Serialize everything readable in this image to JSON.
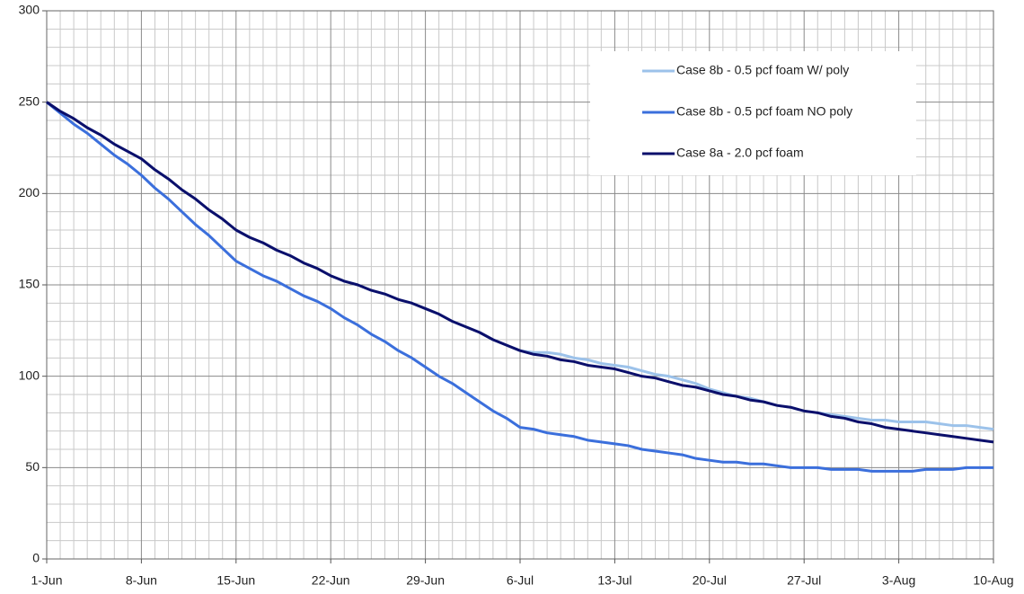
{
  "chart_data": {
    "type": "line",
    "categories": [
      "1-Jun",
      null,
      null,
      null,
      null,
      null,
      null,
      "8-Jun",
      null,
      null,
      null,
      null,
      null,
      null,
      "15-Jun",
      null,
      null,
      null,
      null,
      null,
      null,
      "22-Jun",
      null,
      null,
      null,
      null,
      null,
      null,
      "29-Jun",
      null,
      null,
      null,
      null,
      null,
      null,
      "6-Jul",
      null,
      null,
      null,
      null,
      null,
      null,
      "13-Jul",
      null,
      null,
      null,
      null,
      null,
      null,
      "20-Jul",
      null,
      null,
      null,
      null,
      null,
      null,
      "27-Jul",
      null,
      null,
      null,
      null,
      null,
      null,
      "3-Aug",
      null,
      null,
      null,
      null,
      null,
      null,
      "10-Aug"
    ],
    "series": [
      {
        "name": "Case 8b - 0.5 pcf foam W/ poly",
        "color": "#9cc2ea",
        "values": [
          250,
          245,
          241,
          236,
          232,
          227,
          223,
          219,
          213,
          208,
          202,
          197,
          191,
          186,
          180,
          176,
          173,
          169,
          166,
          162,
          159,
          155,
          152,
          150,
          147,
          145,
          142,
          140,
          137,
          134,
          130,
          127,
          124,
          120,
          117,
          114,
          113,
          113,
          112,
          110,
          109,
          107,
          106,
          105,
          103,
          101,
          100,
          98,
          96,
          93,
          91,
          89,
          88,
          86,
          84,
          83,
          81,
          80,
          79,
          78,
          77,
          76,
          76,
          75,
          75,
          75,
          74,
          73,
          73,
          72,
          71
        ]
      },
      {
        "name": "Case 8b - 0.5 pcf foam NO poly",
        "color": "#3b6fdc",
        "values": [
          250,
          244,
          238,
          233,
          227,
          221,
          216,
          210,
          203,
          197,
          190,
          183,
          177,
          170,
          163,
          159,
          155,
          152,
          148,
          144,
          141,
          137,
          132,
          128,
          123,
          119,
          114,
          110,
          105,
          100,
          96,
          91,
          86,
          81,
          77,
          72,
          71,
          69,
          68,
          67,
          65,
          64,
          63,
          62,
          60,
          59,
          58,
          57,
          55,
          54,
          53,
          53,
          52,
          52,
          51,
          50,
          50,
          50,
          49,
          49,
          49,
          48,
          48,
          48,
          48,
          49,
          49,
          49,
          50,
          50,
          50
        ]
      },
      {
        "name": "Case 8a - 2.0 pcf foam",
        "color": "#0b0f6b",
        "values": [
          250,
          245,
          241,
          236,
          232,
          227,
          223,
          219,
          213,
          208,
          202,
          197,
          191,
          186,
          180,
          176,
          173,
          169,
          166,
          162,
          159,
          155,
          152,
          150,
          147,
          145,
          142,
          140,
          137,
          134,
          130,
          127,
          124,
          120,
          117,
          114,
          112,
          111,
          109,
          108,
          106,
          105,
          104,
          102,
          100,
          99,
          97,
          95,
          94,
          92,
          90,
          89,
          87,
          86,
          84,
          83,
          81,
          80,
          78,
          77,
          75,
          74,
          72,
          71,
          70,
          69,
          68,
          67,
          66,
          65,
          64
        ]
      }
    ],
    "ylim": [
      0,
      300
    ],
    "yticks": [
      0,
      50,
      100,
      150,
      200,
      250,
      300
    ],
    "yminorticks": [
      10,
      20,
      30,
      40,
      60,
      70,
      80,
      90,
      110,
      120,
      130,
      140,
      160,
      170,
      180,
      190,
      210,
      220,
      230,
      240,
      260,
      270,
      280,
      290
    ],
    "grid": true,
    "legend": "upper right"
  }
}
